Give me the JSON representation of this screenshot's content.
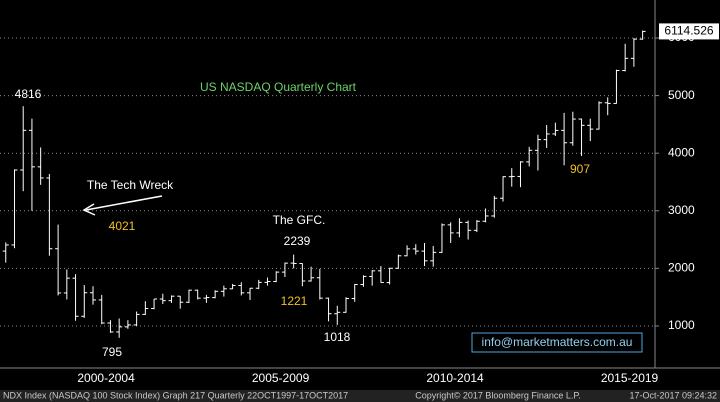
{
  "chart_data": {
    "type": "ohlc",
    "title": "US NASDAQ Quarterly Chart",
    "x": [
      1999.625,
      1999.875,
      2000.125,
      2000.375,
      2000.625,
      2000.875,
      2001.125,
      2001.375,
      2001.625,
      2001.875,
      2002.125,
      2002.375,
      2002.625,
      2002.875,
      2003.125,
      2003.375,
      2003.625,
      2003.875,
      2004.125,
      2004.375,
      2004.625,
      2004.875,
      2005.125,
      2005.375,
      2005.625,
      2005.875,
      2006.125,
      2006.375,
      2006.625,
      2006.875,
      2007.125,
      2007.375,
      2007.625,
      2007.875,
      2008.125,
      2008.375,
      2008.625,
      2008.875,
      2009.125,
      2009.375,
      2009.625,
      2009.875,
      2010.125,
      2010.375,
      2010.625,
      2010.875,
      2011.125,
      2011.375,
      2011.625,
      2011.875,
      2012.125,
      2012.375,
      2012.625,
      2012.875,
      2013.125,
      2013.375,
      2013.625,
      2013.875,
      2014.125,
      2014.375,
      2014.625,
      2014.875,
      2015.125,
      2015.375,
      2015.625,
      2015.875,
      2016.125,
      2016.375,
      2016.625,
      2016.875,
      2017.125,
      2017.375,
      2017.625,
      2017.875
    ],
    "open": [
      2300,
      2407,
      3708,
      4397,
      3763,
      3570,
      2341,
      1573,
      1830,
      1168,
      1577,
      1452,
      1051,
      896,
      984,
      1018,
      1201,
      1303,
      1468,
      1439,
      1517,
      1412,
      1621,
      1483,
      1493,
      1601,
      1645,
      1703,
      1575,
      1655,
      1757,
      1772,
      1935,
      2091,
      2085,
      1781,
      1837,
      1483,
      1212,
      1237,
      1477,
      1720,
      1860,
      1957,
      1754,
      2002,
      2218,
      2338,
      2300,
      2131,
      2278,
      2755,
      2616,
      2799,
      2661,
      2818,
      2910,
      3218,
      3592,
      3596,
      3849,
      4050,
      4236,
      4334,
      4396,
      4181,
      4593,
      4484,
      4418,
      4875,
      4864,
      5436,
      5647,
      5980
    ],
    "high": [
      2450,
      3720,
      4816,
      4600,
      4100,
      3640,
      2760,
      1980,
      1900,
      1710,
      1690,
      1540,
      1100,
      1130,
      1100,
      1250,
      1430,
      1470,
      1560,
      1530,
      1520,
      1630,
      1630,
      1540,
      1620,
      1700,
      1730,
      1760,
      1660,
      1800,
      1840,
      1950,
      2100,
      2239,
      2090,
      2030,
      1990,
      1490,
      1350,
      1500,
      1730,
      1880,
      1970,
      2040,
      2010,
      2240,
      2400,
      2420,
      2440,
      2390,
      2780,
      2800,
      2870,
      2830,
      2840,
      3040,
      3260,
      3600,
      3740,
      3860,
      4110,
      4320,
      4490,
      4530,
      4700,
      4720,
      4600,
      4600,
      4900,
      4970,
      5450,
      5900,
      6000,
      6130
    ],
    "low": [
      2100,
      2350,
      3340,
      3000,
      3450,
      2220,
      1530,
      1460,
      1090,
      1140,
      1370,
      1030,
      880,
      795,
      950,
      1000,
      1190,
      1290,
      1380,
      1400,
      1300,
      1400,
      1460,
      1400,
      1480,
      1510,
      1640,
      1530,
      1450,
      1640,
      1700,
      1760,
      1850,
      2000,
      1690,
      1770,
      1460,
      1080,
      1018,
      1230,
      1420,
      1680,
      1700,
      1750,
      1720,
      1990,
      2210,
      2240,
      2040,
      2030,
      2270,
      2440,
      2540,
      2500,
      2630,
      2800,
      2880,
      3160,
      3420,
      3410,
      3770,
      3700,
      4090,
      4300,
      3790,
      4130,
      3950,
      4210,
      4410,
      4660,
      4860,
      5420,
      5500,
      5970
    ],
    "close": [
      2407,
      3708,
      4397,
      3763,
      3570,
      2341,
      1573,
      1830,
      1168,
      1577,
      1452,
      1051,
      896,
      984,
      1018,
      1201,
      1303,
      1468,
      1439,
      1517,
      1412,
      1621,
      1483,
      1493,
      1601,
      1645,
      1703,
      1575,
      1655,
      1757,
      1772,
      1935,
      2091,
      2085,
      1781,
      1837,
      1483,
      1212,
      1237,
      1477,
      1720,
      1860,
      1957,
      1754,
      2002,
      2218,
      2338,
      2300,
      2131,
      2278,
      2755,
      2616,
      2799,
      2661,
      2818,
      2910,
      3218,
      3592,
      3596,
      3849,
      4050,
      4236,
      4334,
      4396,
      4181,
      4593,
      4484,
      4418,
      4875,
      4864,
      5436,
      5647,
      5980,
      6114.526
    ],
    "color": "#ffffff",
    "xlim": [
      1999.46,
      2018.23
    ],
    "xticks": [
      {
        "value": 2002.5,
        "label": "2000-2004"
      },
      {
        "value": 2007.5,
        "label": "2005-2009"
      },
      {
        "value": 2012.5,
        "label": "2010-2014"
      },
      {
        "value": 2017.5,
        "label": "2015-2019"
      }
    ],
    "ylim": [
      270,
      6660
    ],
    "yticks": [
      1000,
      2000,
      3000,
      4000,
      5000,
      6000
    ],
    "grid": true,
    "annotations": [
      "4816",
      "The Tech Wreck",
      "4021",
      "The GFC.",
      "2239",
      "1221",
      "795",
      "1018",
      "907"
    ],
    "contact": "info@marketmatters.com.au",
    "footer": {
      "left": "NDX Index (NASDAQ 100 Stock Index) Graph 217  Quarterly 22OCT1997-17OCT2017",
      "center": "Copyright© 2017 Bloomberg Finance L.P.",
      "right": "17-Oct-2017 09:24:32"
    }
  }
}
